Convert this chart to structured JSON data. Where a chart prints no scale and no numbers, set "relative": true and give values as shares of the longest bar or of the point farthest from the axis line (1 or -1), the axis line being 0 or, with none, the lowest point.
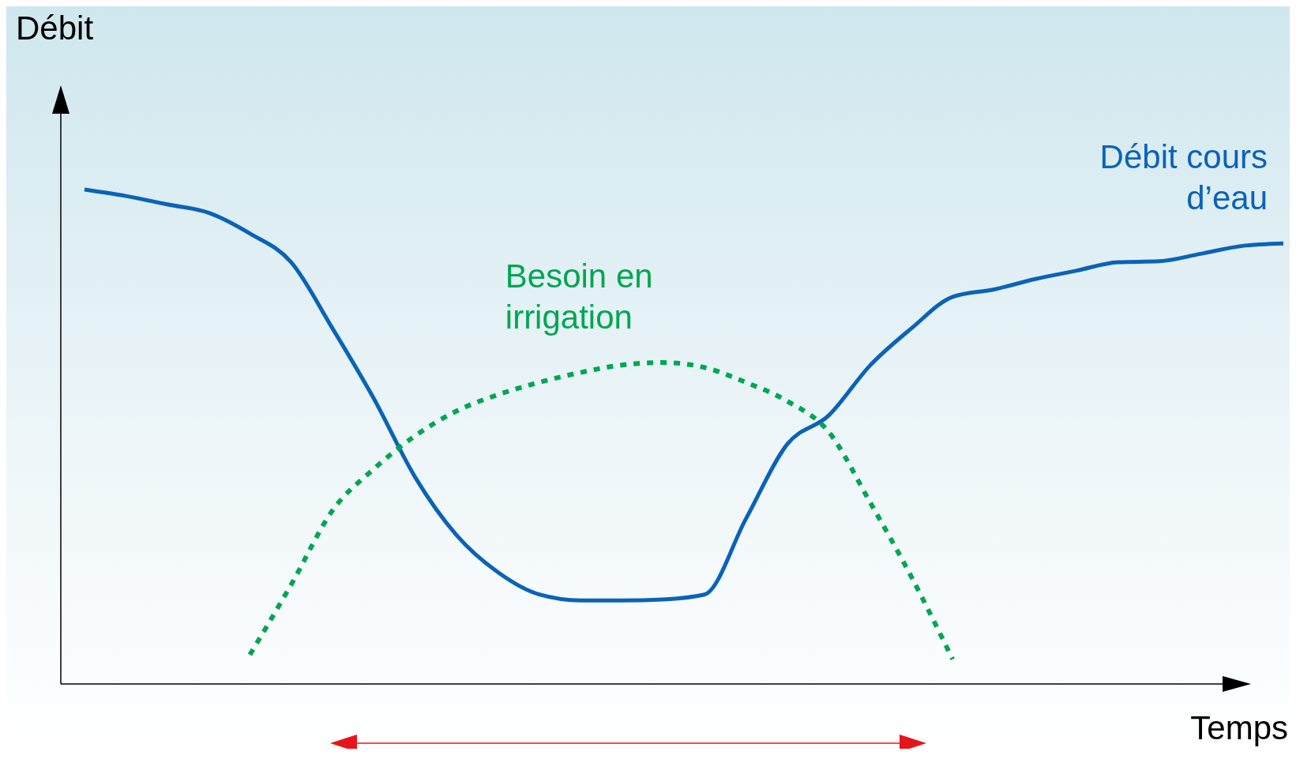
{
  "chart_data": {
    "type": "line",
    "relative": true,
    "xlabel": "Temps",
    "ylabel": "Débit",
    "categories": [
      null,
      null,
      null,
      null,
      null,
      null,
      null,
      null,
      null,
      null,
      null,
      null,
      null,
      null,
      null,
      null,
      null,
      null,
      null,
      null,
      null,
      null,
      null,
      null,
      null,
      null,
      null,
      null,
      null,
      null
    ],
    "series": [
      {
        "name": "Débit cours d’eau",
        "color": "#0a63b8",
        "line_style": "solid",
        "values": [
          1.0,
          0.987,
          0.97,
          0.953,
          0.911,
          0.853,
          0.719,
          0.577,
          0.418,
          0.301,
          0.226,
          0.181,
          0.169,
          0.169,
          0.171,
          0.181,
          0.334,
          0.485,
          0.543,
          0.644,
          0.719,
          0.783,
          0.798,
          0.819,
          0.836,
          0.853,
          0.855,
          0.87,
          0.886,
          0.891
        ]
      },
      {
        "name": "Besoin en irrigation",
        "color": "#00a651",
        "line_style": "dotted",
        "values": [
          null,
          null,
          null,
          null,
          0.059,
          0.201,
          0.351,
          0.435,
          0.502,
          0.552,
          0.585,
          0.61,
          0.63,
          0.645,
          0.65,
          0.64,
          0.61,
          0.572,
          0.51,
          0.368,
          0.217,
          0.05,
          null,
          null,
          null,
          null,
          null,
          null,
          null,
          null
        ]
      }
    ]
  }
}
